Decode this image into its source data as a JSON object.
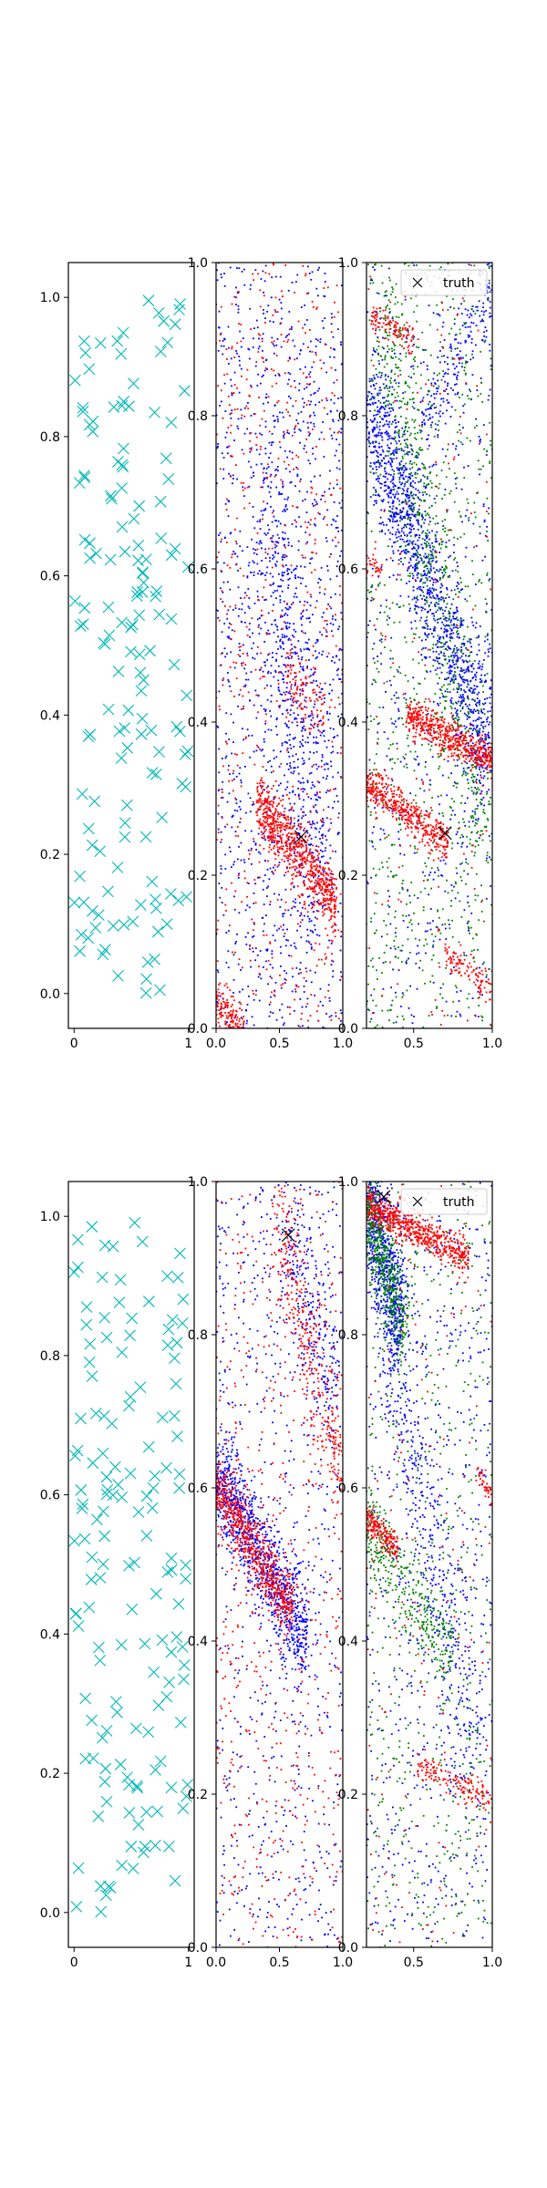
{
  "figure": {
    "background": "#ffffff",
    "colors": {
      "samples": "#00b8b8",
      "blue": "#0000ff",
      "red": "#ff0000",
      "green": "#008000",
      "truth": "#000000"
    }
  },
  "chart_data": [
    {
      "type": "scatter",
      "row": 1,
      "col": 1,
      "xlim": [
        -0.05,
        1.05
      ],
      "ylim": [
        -0.05,
        1.05
      ],
      "xticks": [
        "0",
        "1"
      ],
      "xtick_values": [
        0,
        1
      ],
      "yticks": [
        "0.0",
        "0.2",
        "0.4",
        "0.6",
        "0.8",
        "1.0"
      ],
      "ytick_values": [
        0,
        0.2,
        0.4,
        0.6,
        0.8,
        1.0
      ],
      "grid": false,
      "series": [
        {
          "marker": "x",
          "color": "#00b8b8",
          "count": 150,
          "distribution": "uniform",
          "seed": 11
        }
      ]
    },
    {
      "type": "scatter",
      "row": 1,
      "col": 2,
      "xlim": [
        0,
        1
      ],
      "ylim": [
        0,
        1
      ],
      "xticks": [
        "0.0",
        "0.5",
        "1.0"
      ],
      "xtick_values": [
        0,
        0.5,
        1.0
      ],
      "yticks": [
        "0.0",
        "0.2",
        "0.4",
        "0.6",
        "0.8",
        "1.0"
      ],
      "ytick_values": [
        0,
        0.2,
        0.4,
        0.6,
        0.8,
        1.0
      ],
      "grid": false,
      "series": [
        {
          "color": "#0000ff",
          "seed": 21,
          "uniform": 1300,
          "bands": [
            {
              "x0": 0.35,
              "y0": 0.7,
              "x1": 0.85,
              "y1": 0.2,
              "width": 0.09,
              "n": 500
            }
          ]
        },
        {
          "color": "#ff0000",
          "seed": 22,
          "uniform": 650,
          "bands": [
            {
              "x0": 0.32,
              "y0": 0.3,
              "x1": 0.95,
              "y1": 0.16,
              "width": 0.02,
              "n": 750
            },
            {
              "x0": 0.0,
              "y0": 0.03,
              "x1": 0.22,
              "y1": 0.0,
              "width": 0.015,
              "n": 140
            },
            {
              "x0": 0.55,
              "y0": 0.46,
              "x1": 0.85,
              "y1": 0.4,
              "width": 0.02,
              "n": 90
            }
          ]
        }
      ],
      "truth": [
        {
          "x": 0.67,
          "y": 0.25
        }
      ]
    },
    {
      "type": "scatter",
      "row": 1,
      "col": 3,
      "xlim": [
        0.2,
        1.0
      ],
      "ylim": [
        0,
        1
      ],
      "xticks": [
        "0.5",
        "1.0"
      ],
      "xtick_values": [
        0.5,
        1.0
      ],
      "yticks": [
        "0.0",
        "0.2",
        "0.4",
        "0.6",
        "0.8",
        "1.0"
      ],
      "ytick_values": [
        0,
        0.2,
        0.4,
        0.6,
        0.8,
        1.0
      ],
      "grid": false,
      "legend": {
        "label": "truth",
        "placement": "upper right"
      },
      "series": [
        {
          "color": "#0000ff",
          "seed": 31,
          "uniform": 600,
          "bands": [
            {
              "x0": 0.2,
              "y0": 0.82,
              "x1": 0.98,
              "y1": 0.36,
              "width": 0.045,
              "n": 1300
            },
            {
              "x0": 0.55,
              "y0": 0.78,
              "x1": 1.0,
              "y1": 0.98,
              "width": 0.03,
              "n": 200
            }
          ]
        },
        {
          "color": "#008000",
          "seed": 32,
          "uniform": 900,
          "bands": [
            {
              "x0": 0.3,
              "y0": 0.95,
              "x1": 0.95,
              "y1": 0.25,
              "width": 0.05,
              "n": 500
            }
          ]
        },
        {
          "color": "#ff0000",
          "seed": 33,
          "uniform": 160,
          "bands": [
            {
              "x0": 0.2,
              "y0": 0.32,
              "x1": 0.72,
              "y1": 0.24,
              "width": 0.012,
              "n": 450
            },
            {
              "x0": 0.45,
              "y0": 0.41,
              "x1": 1.0,
              "y1": 0.35,
              "width": 0.012,
              "n": 550
            },
            {
              "x0": 0.23,
              "y0": 0.93,
              "x1": 0.5,
              "y1": 0.9,
              "width": 0.01,
              "n": 110
            },
            {
              "x0": 0.7,
              "y0": 0.1,
              "x1": 1.0,
              "y1": 0.05,
              "width": 0.01,
              "n": 110
            },
            {
              "x0": 0.2,
              "y0": 0.61,
              "x1": 0.3,
              "y1": 0.6,
              "width": 0.008,
              "n": 30
            }
          ]
        }
      ],
      "truth": [
        {
          "x": 0.7,
          "y": 0.255
        }
      ]
    },
    {
      "type": "scatter",
      "row": 2,
      "col": 1,
      "xlim": [
        -0.05,
        1.05
      ],
      "ylim": [
        -0.05,
        1.05
      ],
      "xticks": [
        "0",
        "1"
      ],
      "xtick_values": [
        0,
        1
      ],
      "yticks": [
        "0.0",
        "0.2",
        "0.4",
        "0.6",
        "0.8",
        "1.0"
      ],
      "ytick_values": [
        0,
        0.2,
        0.4,
        0.6,
        0.8,
        1.0
      ],
      "grid": false,
      "series": [
        {
          "marker": "x",
          "color": "#00b8b8",
          "count": 150,
          "distribution": "uniform",
          "seed": 41
        }
      ]
    },
    {
      "type": "scatter",
      "row": 2,
      "col": 2,
      "xlim": [
        0,
        1
      ],
      "ylim": [
        0,
        1
      ],
      "xticks": [
        "0.0",
        "0.5",
        "1.0"
      ],
      "xtick_values": [
        0,
        0.5,
        1.0
      ],
      "yticks": [
        "0.0",
        "0.2",
        "0.4",
        "0.6",
        "0.8",
        "1.0"
      ],
      "ytick_values": [
        0,
        0.2,
        0.4,
        0.6,
        0.8,
        1.0
      ],
      "grid": false,
      "series": [
        {
          "color": "#0000ff",
          "seed": 51,
          "uniform": 700,
          "bands": [
            {
              "x0": 0.0,
              "y0": 0.62,
              "x1": 0.72,
              "y1": 0.4,
              "width": 0.035,
              "n": 1000
            },
            {
              "x0": 0.55,
              "y0": 0.95,
              "x1": 0.95,
              "y1": 0.7,
              "width": 0.05,
              "n": 250
            }
          ]
        },
        {
          "color": "#ff0000",
          "seed": 52,
          "uniform": 600,
          "bands": [
            {
              "x0": 0.0,
              "y0": 0.6,
              "x1": 0.6,
              "y1": 0.44,
              "width": 0.022,
              "n": 700
            },
            {
              "x0": 0.45,
              "y0": 0.98,
              "x1": 1.0,
              "y1": 0.6,
              "width": 0.04,
              "n": 350
            }
          ]
        }
      ],
      "truth": [
        {
          "x": 0.57,
          "y": 0.93
        }
      ]
    },
    {
      "type": "scatter",
      "row": 2,
      "col": 3,
      "xlim": [
        0.2,
        1.0
      ],
      "ylim": [
        0,
        1
      ],
      "xticks": [
        "0.5",
        "1.0"
      ],
      "xtick_values": [
        0.5,
        1.0
      ],
      "yticks": [
        "0.0",
        "0.2",
        "0.4",
        "0.6",
        "0.8",
        "1.0"
      ],
      "ytick_values": [
        0,
        0.2,
        0.4,
        0.6,
        0.8,
        1.0
      ],
      "grid": false,
      "legend": {
        "label": "truth",
        "placement": "upper right"
      },
      "series": [
        {
          "color": "#0000ff",
          "seed": 61,
          "uniform": 700,
          "bands": [
            {
              "x0": 0.2,
              "y0": 0.98,
              "x1": 0.42,
              "y1": 0.8,
              "width": 0.04,
              "n": 700
            },
            {
              "x0": 0.35,
              "y0": 0.78,
              "x1": 0.9,
              "y1": 0.25,
              "width": 0.06,
              "n": 400
            }
          ]
        },
        {
          "color": "#008000",
          "seed": 62,
          "uniform": 600,
          "bands": [
            {
              "x0": 0.2,
              "y0": 0.97,
              "x1": 0.45,
              "y1": 0.8,
              "width": 0.03,
              "n": 500
            },
            {
              "x0": 0.2,
              "y0": 0.55,
              "x1": 0.75,
              "y1": 0.38,
              "width": 0.03,
              "n": 350
            }
          ]
        },
        {
          "color": "#ff0000",
          "seed": 63,
          "uniform": 150,
          "bands": [
            {
              "x0": 0.2,
              "y0": 0.97,
              "x1": 0.85,
              "y1": 0.9,
              "width": 0.012,
              "n": 650
            },
            {
              "x0": 0.2,
              "y0": 0.56,
              "x1": 0.4,
              "y1": 0.52,
              "width": 0.01,
              "n": 180
            },
            {
              "x0": 0.52,
              "y0": 0.24,
              "x1": 1.0,
              "y1": 0.19,
              "width": 0.01,
              "n": 150
            },
            {
              "x0": 0.9,
              "y0": 0.62,
              "x1": 1.0,
              "y1": 0.59,
              "width": 0.008,
              "n": 40
            }
          ]
        }
      ],
      "truth": [
        {
          "x": 0.31,
          "y": 0.98
        }
      ]
    }
  ]
}
